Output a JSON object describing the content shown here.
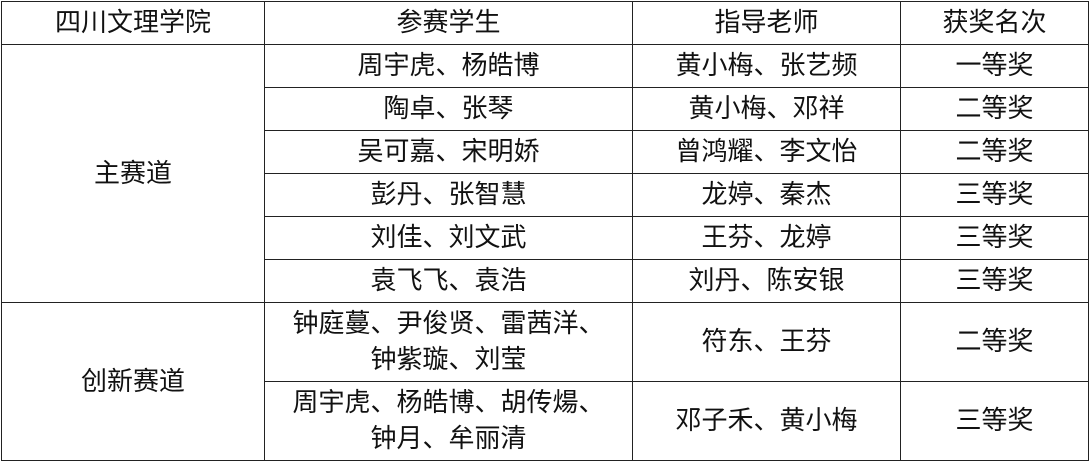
{
  "table": {
    "headers": [
      "四川文理学院",
      "参赛学生",
      "指导老师",
      "获奖名次"
    ],
    "groups": [
      {
        "track": "主赛道",
        "rows": [
          {
            "students": "周宇虎、杨皓博",
            "advisors": "黄小梅、张艺频",
            "award": "一等奖"
          },
          {
            "students": "陶卓、张琴",
            "advisors": "黄小梅、邓祥",
            "award": "二等奖"
          },
          {
            "students": "吴可嘉、宋明娇",
            "advisors": "曾鸿耀、李文怡",
            "award": "二等奖"
          },
          {
            "students": "彭丹、张智慧",
            "advisors": "龙婷、秦杰",
            "award": "三等奖"
          },
          {
            "students": "刘佳、刘文武",
            "advisors": "王芬、龙婷",
            "award": "三等奖"
          },
          {
            "students": "袁飞飞、袁浩",
            "advisors": "刘丹、陈安银",
            "award": "三等奖"
          }
        ]
      },
      {
        "track": "创新赛道",
        "rows": [
          {
            "students_line1": "钟庭蔓、尹俊贤、雷茜洋、",
            "students_line2": "钟紫璇、刘莹",
            "advisors": "符东、王芬",
            "award": "二等奖"
          },
          {
            "students_line1": "周宇虎、杨皓博、胡传煬、",
            "students_line2": "钟月、牟丽清",
            "advisors": "邓子禾、黄小梅",
            "award": "三等奖"
          }
        ]
      }
    ]
  }
}
